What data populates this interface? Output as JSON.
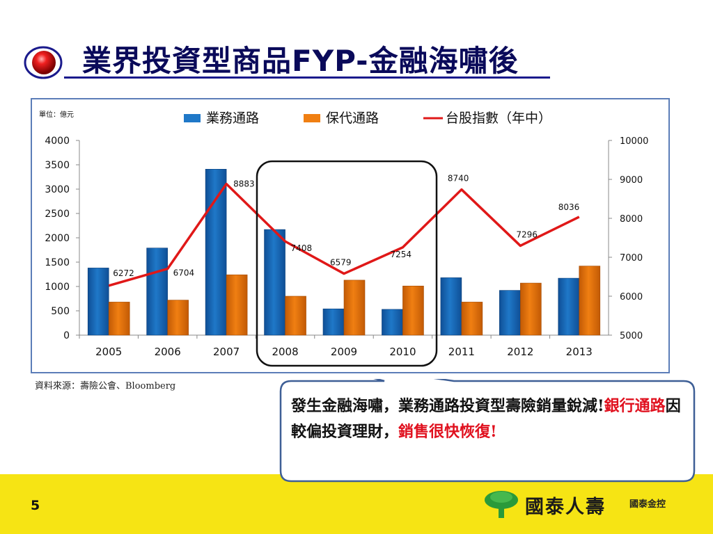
{
  "slide": {
    "title": "業界投資型商品FYP-金融海嘯後",
    "source": "資料來源：壽險公會、Bloomberg",
    "page_number": "5",
    "callout": {
      "part1": "發生金融海嘯，業務通路投資型壽險銷量銳減!",
      "part2_red": "銀行通路",
      "part3": "因較偏投資理財，",
      "part4_red": "銷售很快恢復!"
    },
    "logo": {
      "name": "國泰人壽",
      "sub": "國泰金控"
    }
  },
  "colors": {
    "series_blue": "#1f78c8",
    "series_orange": "#f07f12",
    "line_red": "#e01818",
    "title": "#0a0a5a"
  },
  "chart_data": {
    "type": "bar",
    "unit_label": "單位：億元",
    "categories": [
      "2005",
      "2006",
      "2007",
      "2008",
      "2009",
      "2010",
      "2011",
      "2012",
      "2013"
    ],
    "series": [
      {
        "name": "業務通路",
        "type": "bar",
        "axis": "left",
        "values": [
          1380,
          1790,
          3410,
          2170,
          540,
          530,
          1180,
          920,
          1170
        ]
      },
      {
        "name": "保代通路",
        "type": "bar",
        "axis": "left",
        "values": [
          680,
          720,
          1240,
          800,
          1130,
          1010,
          680,
          1070,
          1420
        ]
      },
      {
        "name": "台股指數（年中）",
        "type": "line",
        "axis": "right",
        "values": [
          6272,
          6704,
          8883,
          7408,
          6579,
          7254,
          8740,
          7296,
          8036
        ]
      }
    ],
    "ylim": [
      0,
      4000
    ],
    "yticks": [
      0,
      500,
      1000,
      1500,
      2000,
      2500,
      3000,
      3500,
      4000
    ],
    "y2lim": [
      5000,
      10000
    ],
    "y2ticks": [
      5000,
      6000,
      7000,
      8000,
      9000,
      10000
    ],
    "data_labels": [
      "6272",
      "6704",
      "8883",
      "7408",
      "6579",
      "7254",
      "8740",
      "7296",
      "8036"
    ],
    "legend_position": "top-center",
    "grid": false,
    "highlight": "2008-2010"
  }
}
